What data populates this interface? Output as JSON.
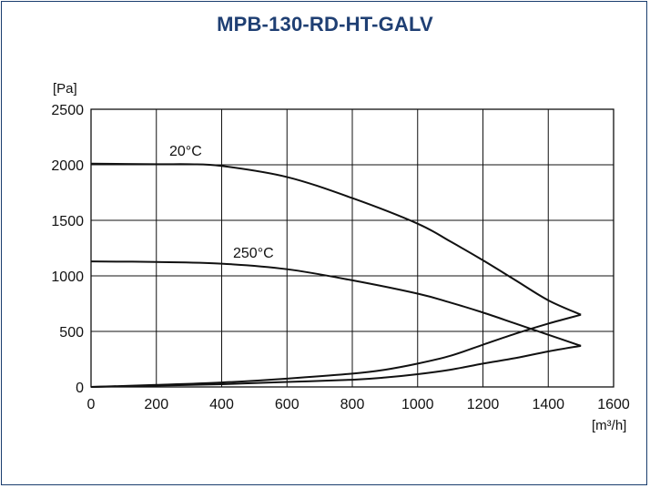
{
  "chart_data": {
    "type": "line",
    "title": "MPB-130-RD-HT-GALV",
    "ylabel": "[Pa]",
    "xlabel": "[m³/h]",
    "xlim": [
      0,
      1600
    ],
    "ylim": [
      0,
      2500
    ],
    "xticks": [
      0,
      200,
      400,
      600,
      800,
      1000,
      1200,
      1400,
      1600
    ],
    "yticks": [
      0,
      500,
      1000,
      1500,
      2000,
      2500
    ],
    "grid": true,
    "series": [
      {
        "name": "20°C",
        "x": [
          0,
          200,
          300,
          400,
          600,
          800,
          1000,
          1100,
          1200,
          1300,
          1400,
          1500
        ],
        "y": [
          2010,
          2005,
          2005,
          1990,
          1890,
          1700,
          1470,
          1310,
          1140,
          960,
          780,
          650
        ]
      },
      {
        "name": "250°C",
        "x": [
          0,
          200,
          400,
          600,
          800,
          1000,
          1100,
          1200,
          1300,
          1400,
          1500
        ],
        "y": [
          1130,
          1125,
          1110,
          1060,
          960,
          840,
          760,
          670,
          570,
          470,
          370
        ]
      },
      {
        "x": [
          0,
          200,
          400,
          600,
          800,
          900,
          1000,
          1100,
          1200,
          1300,
          1400,
          1500
        ],
        "y": [
          0,
          18,
          40,
          75,
          120,
          155,
          210,
          280,
          380,
          480,
          570,
          650
        ]
      },
      {
        "x": [
          0,
          200,
          400,
          600,
          800,
          900,
          1000,
          1100,
          1200,
          1300,
          1400,
          1500
        ],
        "y": [
          0,
          12,
          25,
          45,
          65,
          85,
          115,
          155,
          210,
          260,
          320,
          370
        ]
      }
    ]
  }
}
